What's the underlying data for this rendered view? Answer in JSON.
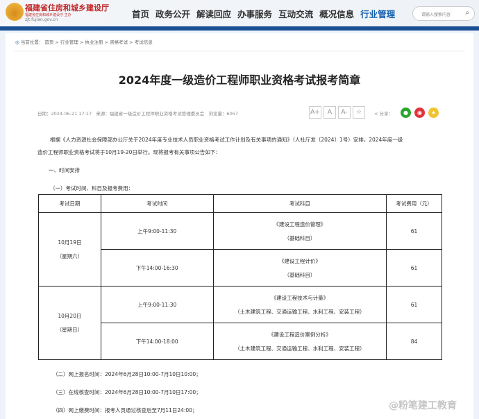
{
  "header": {
    "logo_title": "福建省住房和城乡建设厅",
    "logo_subtitle": "福建省住房和城乡建设厅 主办",
    "logo_url": "zjt.fujian.gov.cn",
    "nav": [
      "首页",
      "政务公开",
      "解读回应",
      "办事服务",
      "互动交流",
      "概况信息",
      "行业管理"
    ],
    "active_nav": "行业管理",
    "search_placeholder": "请输入搜索内容",
    "accent": "#1a4f94"
  },
  "breadcrumb": {
    "label": "当前位置：",
    "items": [
      "首页",
      "行业管理",
      "执业注册",
      "资格考试",
      "考试信息"
    ]
  },
  "article": {
    "title": "2024年度一级造价工程师职业资格考试报考简章",
    "date": "日期：2024-06-21 17:17",
    "source": "来源：福建省一级造价工程师职业资格考试管理委员会",
    "views": "浏览量：6057",
    "font_buttons": [
      "A+",
      "A",
      "A-"
    ],
    "share_label": "分享：",
    "intro1": "根据《人力资源社会保障部办公厅关于2024年度专业技术人员职业资格考试工作计划及有关事项的通知》（人社厅发〔2024〕1号）安排，2024年度一级",
    "intro2": "造价工程师职业资格考试将于10月19-20日举行。现将报考有关事项公告如下：",
    "section1": "一、时间安排",
    "sub1": "（一）考试时间、科目及报考费用：",
    "table": {
      "headers": [
        "考试日期",
        "考试时间",
        "考试科目",
        "考试费用（元）"
      ],
      "days": [
        {
          "date": "10月19日",
          "weekday": "（星期六）",
          "rows": [
            {
              "time": "上午9:00-11:30",
              "subject": "《建设工程造价管理》",
              "type": "（基础科目）",
              "fee": "61"
            },
            {
              "time": "下午14:00-16:30",
              "subject": "《建设工程计价》",
              "type": "（基础科目）",
              "fee": "61"
            }
          ]
        },
        {
          "date": "10月20日",
          "weekday": "（星期日）",
          "rows": [
            {
              "time": "上午9:00-11:30",
              "subject": "《建设工程技术与计量》",
              "type": "（土木建筑工程、交通运输工程、水利工程、安装工程）",
              "fee": "61"
            },
            {
              "time": "下午14:00-18:00",
              "subject": "《建设工程造价案例分析》",
              "type": "（土木建筑工程、交通运输工程、水利工程、安装工程）",
              "fee": "84"
            }
          ]
        }
      ]
    },
    "item2": "（二）网上报名时间：2024年6月28日10:00-7月10日10:00；",
    "item3": "（三）在线核查时间：2024年6月28日10:00-7月10日17:00；",
    "item4": "（四）网上缴费时间：报考人员通过核查后至7月11日24:00；"
  },
  "watermark": "@粉笔建工教育"
}
